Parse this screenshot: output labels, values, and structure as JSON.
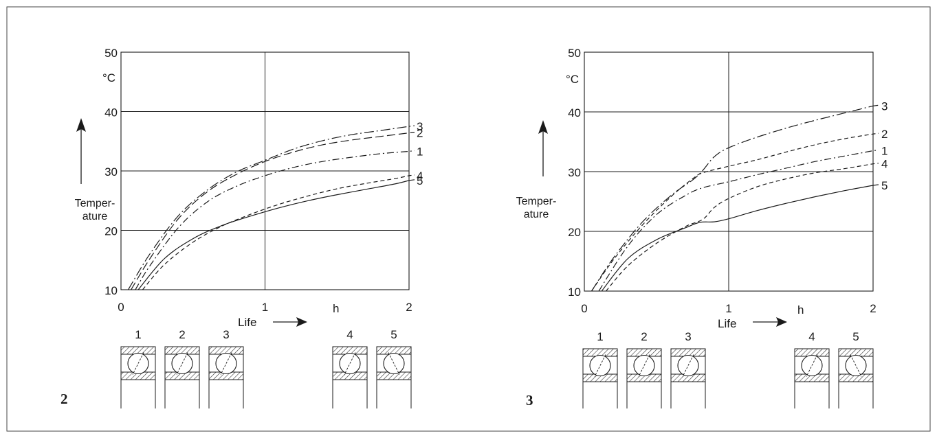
{
  "chart_data": [
    {
      "type": "line",
      "figure_label": "2",
      "title": "",
      "xlabel": "Life",
      "x_unit": "h",
      "ylabel": "Temper-\nature",
      "y_unit": "°C",
      "xlim": [
        0,
        2
      ],
      "ylim": [
        10,
        50
      ],
      "x_ticks": [
        "0",
        "1",
        "2"
      ],
      "y_ticks": [
        "10",
        "20",
        "30",
        "40",
        "50"
      ],
      "grid": true,
      "series": [
        {
          "name": "3",
          "style": "long-dash-dot",
          "x": [
            0.05,
            0.2,
            0.4,
            0.6,
            0.8,
            1.0,
            1.2,
            1.4,
            1.6,
            1.8,
            2.0
          ],
          "y": [
            10,
            16,
            22.5,
            26.8,
            29.8,
            31.8,
            33.7,
            35.1,
            36.1,
            36.8,
            37.5
          ]
        },
        {
          "name": "2",
          "style": "long-dash",
          "x": [
            0.07,
            0.2,
            0.4,
            0.6,
            0.8,
            1.0,
            1.2,
            1.4,
            1.6,
            1.8,
            2.0
          ],
          "y": [
            10,
            15.2,
            22,
            26.5,
            29.4,
            31.6,
            33.2,
            34.4,
            35.2,
            35.8,
            36.4
          ]
        },
        {
          "name": "1",
          "style": "dash-dot",
          "x": [
            0.1,
            0.2,
            0.4,
            0.6,
            0.8,
            1.0,
            1.2,
            1.4,
            1.6,
            1.8,
            2.0
          ],
          "y": [
            10,
            14,
            20.5,
            24.8,
            27.4,
            29.2,
            30.6,
            31.6,
            32.3,
            32.9,
            33.3
          ]
        },
        {
          "name": "4",
          "style": "dashed",
          "x": [
            0.15,
            0.3,
            0.5,
            0.7,
            0.9,
            1.1,
            1.3,
            1.5,
            1.7,
            1.9,
            2.0
          ],
          "y": [
            10,
            14.2,
            18,
            20.7,
            22.7,
            24.4,
            25.8,
            27,
            27.9,
            28.7,
            29.2
          ]
        },
        {
          "name": "5",
          "style": "solid",
          "x": [
            0.12,
            0.3,
            0.5,
            0.7,
            0.9,
            1.1,
            1.3,
            1.5,
            1.7,
            1.9,
            2.0
          ],
          "y": [
            10,
            15.2,
            18.6,
            20.8,
            22.4,
            23.8,
            25,
            26,
            26.9,
            27.8,
            28.4
          ]
        }
      ]
    },
    {
      "type": "line",
      "figure_label": "3",
      "title": "",
      "xlabel": "Life",
      "x_unit": "h",
      "ylabel": "Temper-\nature",
      "y_unit": "°C",
      "xlim": [
        0,
        2
      ],
      "ylim": [
        10,
        50
      ],
      "x_ticks": [
        "0",
        "1",
        "2"
      ],
      "y_ticks": [
        "10",
        "20",
        "30",
        "40",
        "50"
      ],
      "grid": true,
      "series": [
        {
          "name": "3",
          "style": "long-dash-dot",
          "x": [
            0.05,
            0.2,
            0.4,
            0.6,
            0.75,
            0.82,
            0.9,
            1.0,
            1.2,
            1.4,
            1.6,
            1.8,
            2.0
          ],
          "y": [
            10,
            15.5,
            21.5,
            26,
            28.6,
            30.2,
            32.5,
            34,
            35.8,
            37.3,
            38.6,
            39.8,
            41
          ]
        },
        {
          "name": "2",
          "style": "dashed",
          "x": [
            0.05,
            0.2,
            0.4,
            0.6,
            0.75,
            0.82,
            1.0,
            1.2,
            1.4,
            1.6,
            1.8,
            2.0
          ],
          "y": [
            10,
            15.2,
            21,
            25.8,
            28.8,
            29.8,
            30.9,
            32,
            33.3,
            34.5,
            35.5,
            36.3
          ]
        },
        {
          "name": "1",
          "style": "dash-dot",
          "x": [
            0.1,
            0.3,
            0.5,
            0.7,
            0.82,
            1.0,
            1.2,
            1.4,
            1.6,
            1.8,
            2.0
          ],
          "y": [
            10,
            17.5,
            22.8,
            26,
            27.3,
            28.3,
            29.5,
            30.6,
            31.7,
            32.6,
            33.5
          ]
        },
        {
          "name": "4",
          "style": "dashed",
          "x": [
            0.15,
            0.3,
            0.5,
            0.7,
            0.82,
            0.9,
            1.0,
            1.2,
            1.4,
            1.6,
            1.8,
            2.0
          ],
          "y": [
            10,
            14.2,
            18,
            20.8,
            22,
            24,
            25.5,
            27.5,
            28.8,
            29.8,
            30.5,
            31.3
          ]
        },
        {
          "name": "5",
          "style": "solid",
          "x": [
            0.12,
            0.3,
            0.5,
            0.7,
            0.8,
            0.9,
            1.0,
            1.2,
            1.4,
            1.6,
            1.8,
            2.0
          ],
          "y": [
            10,
            15.4,
            18.6,
            20.6,
            21.5,
            21.6,
            22.1,
            23.5,
            24.7,
            25.8,
            26.8,
            27.7
          ]
        }
      ]
    }
  ],
  "bearings": {
    "labels": [
      "1",
      "2",
      "3",
      "4",
      "5"
    ]
  }
}
